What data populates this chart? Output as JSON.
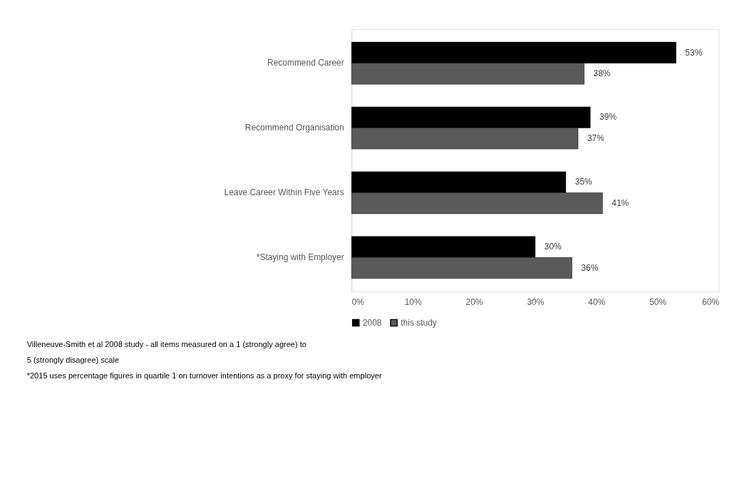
{
  "chart_data": {
    "type": "bar",
    "orientation": "horizontal",
    "categories": [
      "Recommend Career",
      "Recommend Organisation",
      "Leave Career Within Five Years",
      "*Staying with Employer"
    ],
    "series": [
      {
        "name": "2008",
        "color": "#000000",
        "values": [
          53,
          39,
          35,
          30
        ],
        "value_labels": [
          "53%",
          "39%",
          "35%",
          "30%"
        ]
      },
      {
        "name": "this study",
        "color": "#5a5a5a",
        "values": [
          38,
          37,
          41,
          36
        ],
        "value_labels": [
          "38%",
          "37%",
          "41%",
          "36%"
        ]
      }
    ],
    "xlim": [
      0,
      60
    ],
    "xticks": [
      {
        "value": 0,
        "label": "0%"
      },
      {
        "value": 10,
        "label": "10%"
      },
      {
        "value": 20,
        "label": "20%"
      },
      {
        "value": 30,
        "label": "30%"
      },
      {
        "value": 40,
        "label": "40%"
      },
      {
        "value": 50,
        "label": "50%"
      },
      {
        "value": 60,
        "label": "60%"
      }
    ],
    "grid": false,
    "legend": "bottom",
    "annotations": [
      "Villeneuve-Smith et al 2008 study - all items measured on a 1 (strongly agree) to",
      "5 (strongly disagree) scale",
      "*2015 uses percentage figures in quartile 1 on turnover intentions as a proxy for staying with employer"
    ]
  }
}
